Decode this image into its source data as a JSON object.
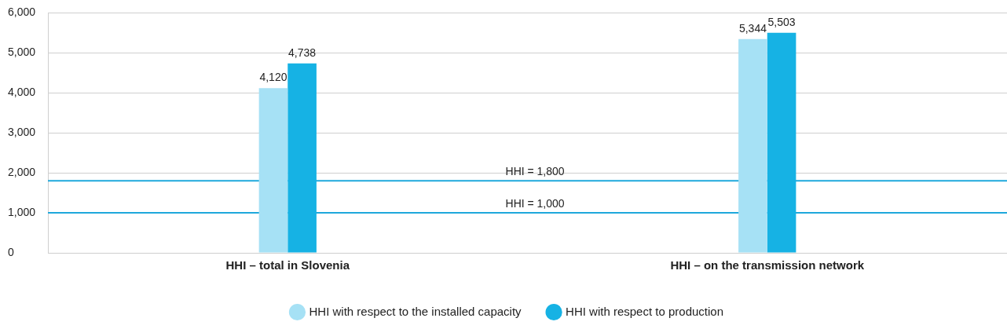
{
  "chart_data": {
    "type": "bar",
    "categories": [
      "HHI – total in Slovenia",
      "HHI – on the transmission network"
    ],
    "series": [
      {
        "name": "HHI with respect to the installed capacity",
        "color": "#a6e1f5",
        "values": [
          4120,
          5344
        ]
      },
      {
        "name": "HHI with respect to production",
        "color": "#16b2e4",
        "values": [
          4738,
          5503
        ]
      }
    ],
    "ylim": [
      0,
      6000
    ],
    "yticks": [
      {
        "value": 0,
        "label": "0"
      },
      {
        "value": 1000,
        "label": "1,000"
      },
      {
        "value": 2000,
        "label": "2,000"
      },
      {
        "value": 3000,
        "label": "3,000"
      },
      {
        "value": 4000,
        "label": "4,000"
      },
      {
        "value": 5000,
        "label": "5,000"
      },
      {
        "value": 6000,
        "label": "6,000"
      }
    ],
    "value_labels": [
      [
        "4,120",
        "5,344"
      ],
      [
        "4,738",
        "5,503"
      ]
    ],
    "ref_lines": [
      {
        "axis": "y",
        "value": 1800,
        "label": "HHI = 1,800",
        "color": "#1ea8dc"
      },
      {
        "axis": "y",
        "value": 1000,
        "label": "HHI = 1,000",
        "color": "#1ea8dc"
      }
    ],
    "grid": "y",
    "legend": "bottom"
  }
}
